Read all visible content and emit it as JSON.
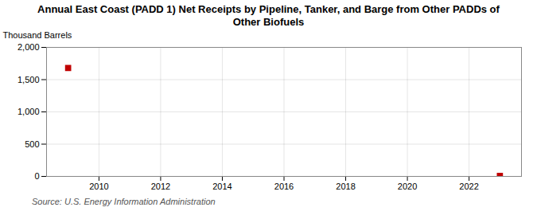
{
  "chart_data": {
    "type": "scatter",
    "title": "Annual East Coast (PADD 1) Net Receipts by Pipeline, Tanker, and Barge from Other PADDs of\nOther Biofuels",
    "ylabel": "Thousand Barrels",
    "source": "Source: U.S. Energy Information Administration",
    "x": [
      2009,
      2023
    ],
    "values": [
      1680,
      8
    ],
    "color": "#c00000",
    "marker": "square",
    "xlim": [
      2008.3,
      2023.7
    ],
    "ylim": [
      0,
      2000
    ],
    "xticks": [
      2010,
      2012,
      2014,
      2016,
      2018,
      2020,
      2022
    ],
    "yticks": [
      0,
      500,
      {
        "value": 1000,
        "label": "1,000"
      },
      {
        "value": 1500,
        "label": "1,500"
      },
      {
        "value": 2000,
        "label": "2,000"
      }
    ],
    "grid": true
  }
}
